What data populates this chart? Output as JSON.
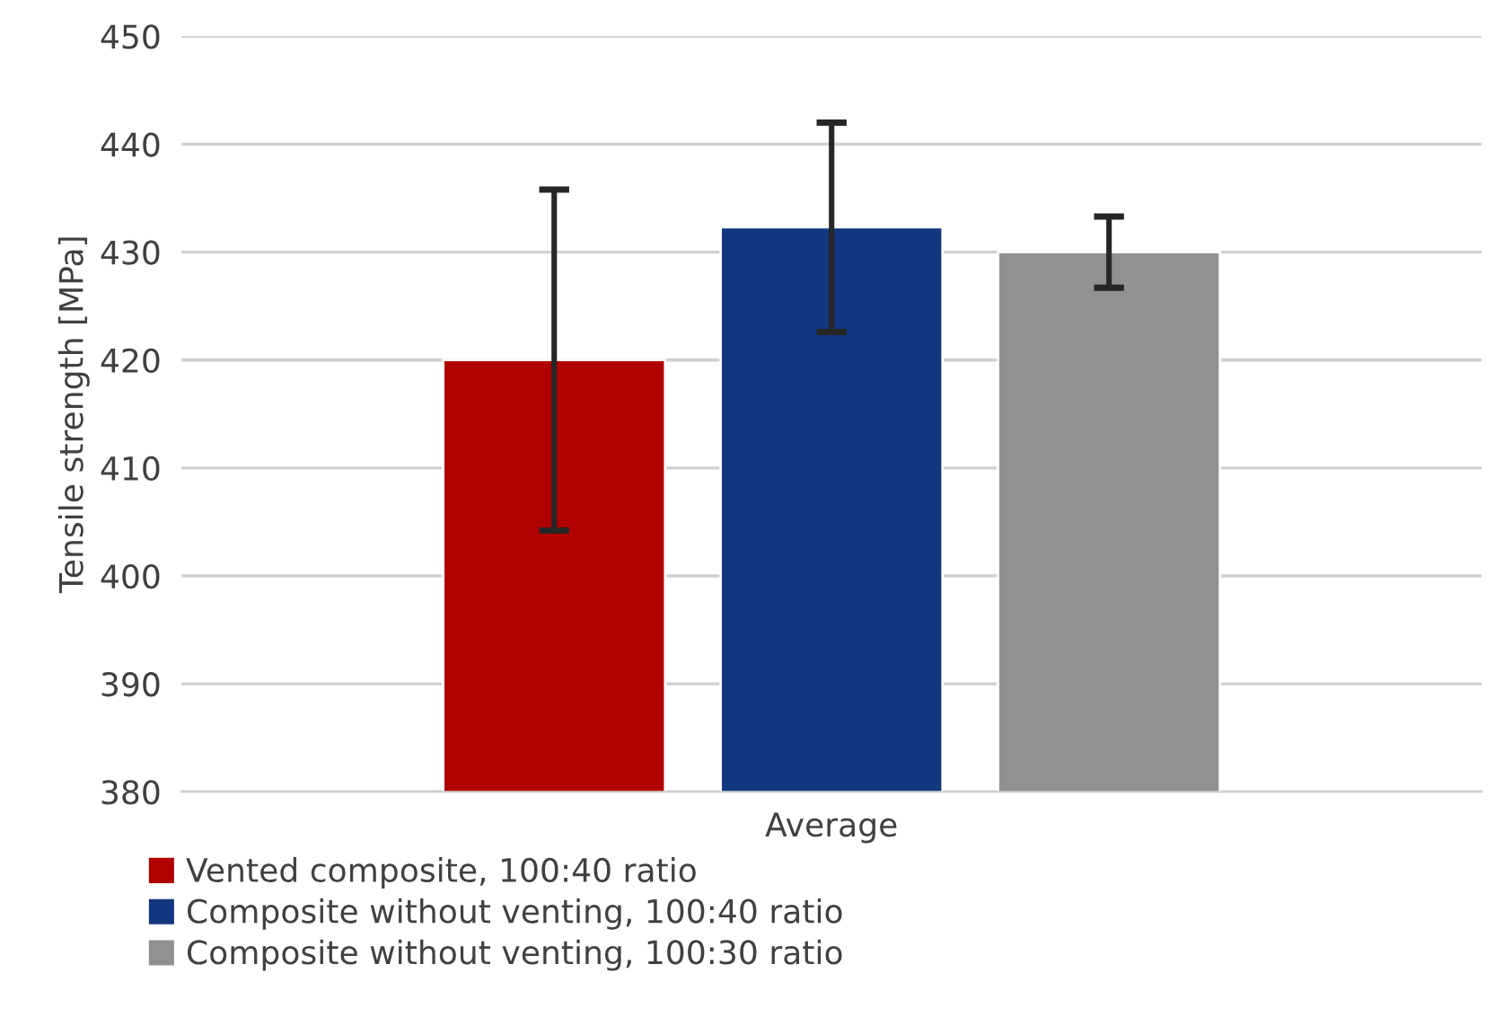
{
  "chart_data": {
    "type": "bar",
    "ylabel": "Tensile strength [MPa]",
    "categories": [
      "Average"
    ],
    "series": [
      {
        "name": "Vented composite, 100:40 ratio",
        "color": "#b00000",
        "values": [
          420.0
        ],
        "errors": [
          15.8
        ]
      },
      {
        "name": "Composite without venting, 100:40 ratio",
        "color": "#13377f",
        "values": [
          432.3
        ],
        "errors": [
          9.7
        ]
      },
      {
        "name": "Composite without venting, 100:30 ratio",
        "color": "#919191",
        "values": [
          430.0
        ],
        "errors": [
          3.3
        ]
      }
    ],
    "ylim": [
      380,
      450
    ],
    "yticks": [
      380,
      390,
      400,
      410,
      420,
      430,
      440,
      450
    ],
    "grid": "y",
    "legend": "bottom"
  }
}
